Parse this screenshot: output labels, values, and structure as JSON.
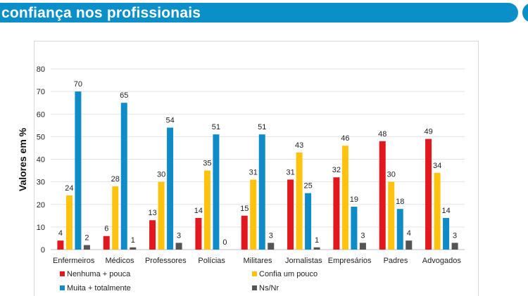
{
  "header": {
    "title": "confiança nos profissionais"
  },
  "colors": {
    "title_bar": "#0a8fc9"
  },
  "chart_data": {
    "type": "bar",
    "title": "",
    "xlabel": "",
    "ylabel": "Valores em %",
    "ylim": [
      0,
      80
    ],
    "yticks": [
      0,
      10,
      20,
      30,
      40,
      50,
      60,
      70,
      80
    ],
    "grid": true,
    "legend_position": "bottom",
    "categories": [
      "Enfermeiros",
      "Médicos",
      "Professores",
      "Polícias",
      "Militares",
      "Jornalistas",
      "Empresários",
      "Padres",
      "Advogados"
    ],
    "series": [
      {
        "name": "Nenhuma + pouca",
        "color": "#e3171e",
        "values": [
          4,
          6,
          13,
          14,
          15,
          31,
          32,
          48,
          49
        ]
      },
      {
        "name": "Confia um pouco",
        "color": "#ffc20e",
        "values": [
          24,
          28,
          30,
          35,
          31,
          43,
          46,
          30,
          34
        ]
      },
      {
        "name": "Muita + totalmente",
        "color": "#0f8cc8",
        "values": [
          70,
          65,
          54,
          51,
          51,
          25,
          19,
          18,
          14
        ]
      },
      {
        "name": "Ns/Nr",
        "color": "#555555",
        "values": [
          2,
          1,
          3,
          0,
          3,
          1,
          3,
          4,
          3
        ]
      }
    ]
  }
}
